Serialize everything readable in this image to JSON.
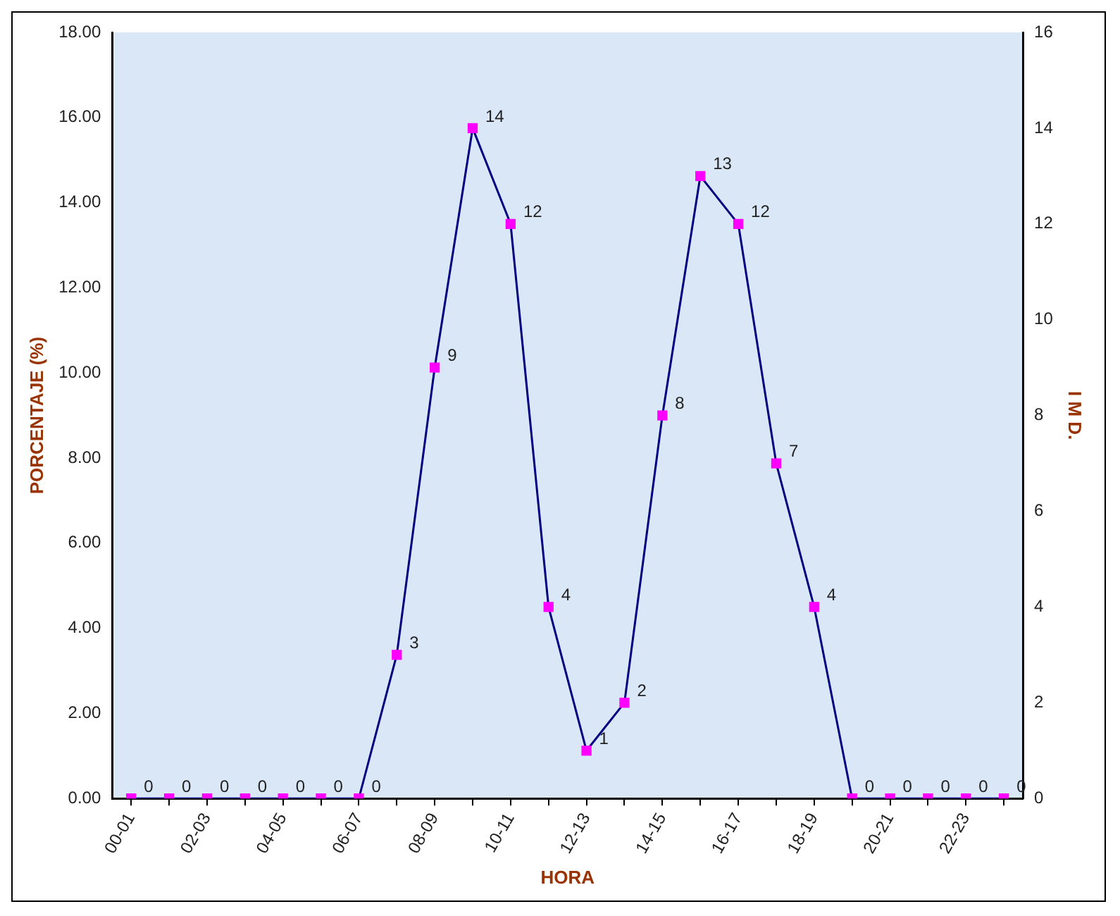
{
  "chart_data": {
    "type": "line",
    "xlabel": "HORA",
    "ylabel": "PORCENTAJE (%)",
    "y2label": "I M D.",
    "categories": [
      "00-01",
      null,
      "02-03",
      null,
      "04-05",
      null,
      "06-07",
      null,
      "08-09",
      null,
      "10-11",
      null,
      "12-13",
      null,
      "14-15",
      null,
      "16-17",
      null,
      "18-19",
      null,
      "20-21",
      null,
      "22-23",
      null
    ],
    "series": [
      {
        "color": "#000080",
        "axis": "y2",
        "values": [
          0,
          0,
          0,
          0,
          0,
          0,
          0,
          3,
          9,
          14,
          12,
          4,
          1,
          2,
          8,
          13,
          12,
          7,
          4,
          0,
          0,
          0,
          0,
          0
        ],
        "colors": [
          "#ff00ff",
          "#ff00ff",
          "#ff00ff",
          "#ff00ff",
          "#ff00ff",
          "#ff00ff",
          "#ff00ff",
          "#ff00ff",
          "#ff00ff",
          "#ff00ff",
          "#ff00ff",
          "#ff00ff",
          "#ff00ff",
          "#ff00ff",
          "#ff00ff",
          "#ff00ff",
          "#ff00ff",
          "#ff00ff",
          "#ff00ff",
          "#ff00ff",
          "#ff00ff",
          "#ff00ff",
          "#ff00ff",
          "#ff00ff"
        ]
      }
    ],
    "ylim": [
      0,
      18
    ],
    "yticks": [
      {
        "value": 0,
        "label": "0.00"
      },
      {
        "value": 2,
        "label": "2.00"
      },
      {
        "value": 4,
        "label": "4.00"
      },
      {
        "value": 6,
        "label": "6.00"
      },
      {
        "value": 8,
        "label": "8.00"
      },
      {
        "value": 10,
        "label": "10.00"
      },
      {
        "value": 12,
        "label": "12.00"
      },
      {
        "value": 14,
        "label": "14.00"
      },
      {
        "value": 16,
        "label": "16.00"
      },
      {
        "value": 18,
        "label": "18.00"
      }
    ],
    "y2lim": [
      0,
      16
    ],
    "y2ticks": [
      0,
      2,
      4,
      6,
      8,
      10,
      12,
      14,
      16
    ],
    "marker": "square",
    "line_style": "solid",
    "grid": false,
    "legend": false,
    "data_labels": true
  }
}
